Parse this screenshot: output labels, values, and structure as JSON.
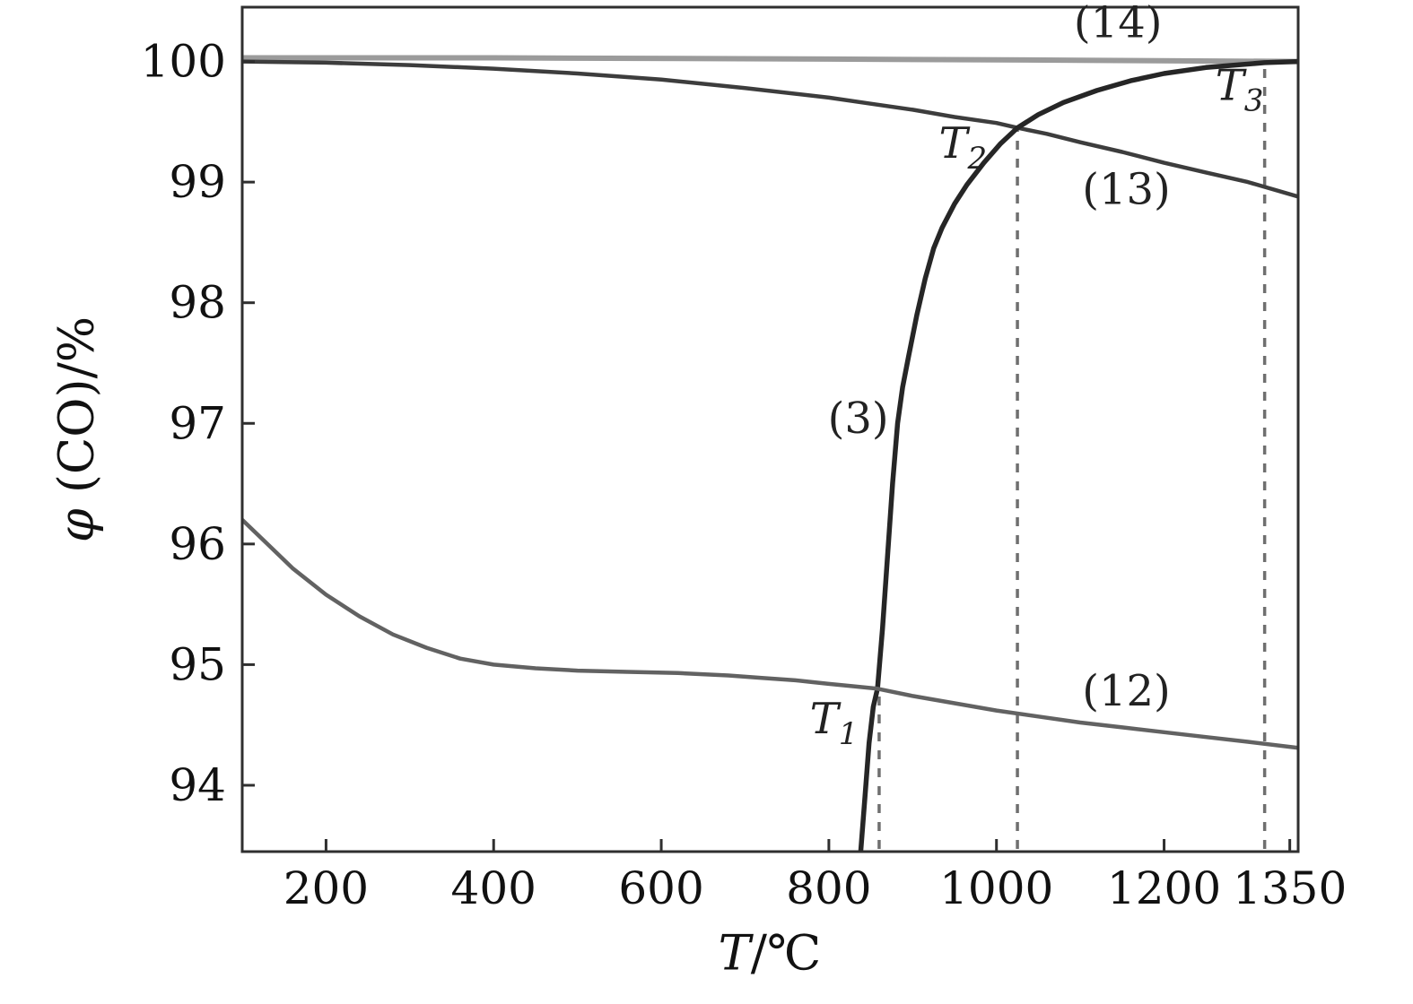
{
  "chart_data": {
    "type": "line",
    "title": "",
    "xlabel": {
      "symbol": "T",
      "rest": "/℃"
    },
    "ylabel": {
      "symbol": "φ",
      "rest": " (CO)/%"
    },
    "xlim": [
      100,
      1360
    ],
    "ylim": [
      93.45,
      100.45
    ],
    "xticks": [
      200,
      400,
      600,
      800,
      1000,
      1200,
      1350
    ],
    "yticks": [
      94,
      95,
      96,
      97,
      98,
      99,
      100
    ],
    "grid": false,
    "legend": "inline-curve-labels",
    "frame_color": "#2f2f2f",
    "dashed_line_color": "#6f6f6f",
    "series": [
      {
        "name": "(14)",
        "color": "#9b9b9b",
        "width": 6,
        "points": [
          [
            100,
            100.03
          ],
          [
            400,
            100.03
          ],
          [
            800,
            100.02
          ],
          [
            1100,
            100.01
          ],
          [
            1360,
            100.0
          ]
        ]
      },
      {
        "name": "(13)",
        "color": "#3d3d3d",
        "width": 4.5,
        "points": [
          [
            100,
            100.0
          ],
          [
            200,
            99.99
          ],
          [
            300,
            99.97
          ],
          [
            400,
            99.94
          ],
          [
            500,
            99.9
          ],
          [
            600,
            99.85
          ],
          [
            700,
            99.78
          ],
          [
            800,
            99.7
          ],
          [
            850,
            99.65
          ],
          [
            900,
            99.6
          ],
          [
            950,
            99.54
          ],
          [
            1000,
            99.49
          ],
          [
            1025,
            99.45
          ],
          [
            1060,
            99.4
          ],
          [
            1100,
            99.33
          ],
          [
            1150,
            99.25
          ],
          [
            1200,
            99.16
          ],
          [
            1250,
            99.08
          ],
          [
            1300,
            99.0
          ],
          [
            1360,
            98.88
          ]
        ]
      },
      {
        "name": "(3)",
        "color": "#262626",
        "width": 5.5,
        "points": [
          [
            838,
            93.45
          ],
          [
            843,
            93.9
          ],
          [
            848,
            94.35
          ],
          [
            853,
            94.65
          ],
          [
            858,
            94.8
          ],
          [
            864,
            95.3
          ],
          [
            870,
            95.9
          ],
          [
            876,
            96.5
          ],
          [
            882,
            97.0
          ],
          [
            888,
            97.3
          ],
          [
            895,
            97.55
          ],
          [
            905,
            97.9
          ],
          [
            915,
            98.2
          ],
          [
            925,
            98.45
          ],
          [
            935,
            98.62
          ],
          [
            950,
            98.82
          ],
          [
            965,
            98.98
          ],
          [
            985,
            99.16
          ],
          [
            1005,
            99.32
          ],
          [
            1025,
            99.45
          ],
          [
            1050,
            99.56
          ],
          [
            1080,
            99.66
          ],
          [
            1120,
            99.76
          ],
          [
            1160,
            99.84
          ],
          [
            1200,
            99.9
          ],
          [
            1250,
            99.95
          ],
          [
            1320,
            99.99
          ],
          [
            1360,
            100.0
          ]
        ]
      },
      {
        "name": "(12)",
        "color": "#626262",
        "width": 4.5,
        "points": [
          [
            100,
            96.2
          ],
          [
            130,
            96.0
          ],
          [
            160,
            95.8
          ],
          [
            200,
            95.58
          ],
          [
            240,
            95.4
          ],
          [
            280,
            95.25
          ],
          [
            320,
            95.14
          ],
          [
            360,
            95.05
          ],
          [
            400,
            95.0
          ],
          [
            450,
            94.97
          ],
          [
            500,
            94.95
          ],
          [
            560,
            94.94
          ],
          [
            620,
            94.93
          ],
          [
            680,
            94.91
          ],
          [
            720,
            94.89
          ],
          [
            760,
            94.87
          ],
          [
            800,
            94.84
          ],
          [
            830,
            94.82
          ],
          [
            858,
            94.8
          ],
          [
            900,
            94.74
          ],
          [
            950,
            94.68
          ],
          [
            1000,
            94.62
          ],
          [
            1050,
            94.57
          ],
          [
            1100,
            94.52
          ],
          [
            1150,
            94.48
          ],
          [
            1200,
            94.44
          ],
          [
            1250,
            94.4
          ],
          [
            1300,
            94.36
          ],
          [
            1360,
            94.31
          ]
        ]
      }
    ],
    "vlines": [
      {
        "name": "T1",
        "x": 860,
        "y_top": 94.78
      },
      {
        "name": "T2",
        "x": 1025,
        "y_top": 99.45
      },
      {
        "name": "T3",
        "x": 1320,
        "y_top": 99.97
      }
    ],
    "annotations": [
      {
        "text": "(14)",
        "x": 1145,
        "y": 100.2,
        "italic": false
      },
      {
        "base": "T",
        "sub": "3",
        "x": 1290,
        "y": 99.68,
        "italic": true
      },
      {
        "base": "T",
        "sub": "2",
        "x": 960,
        "y": 99.2,
        "italic": true
      },
      {
        "text": "(13)",
        "x": 1155,
        "y": 98.82,
        "italic": false
      },
      {
        "text": "(3)",
        "x": 835,
        "y": 96.92,
        "italic": false
      },
      {
        "text": "(12)",
        "x": 1155,
        "y": 94.66,
        "italic": false
      },
      {
        "base": "T",
        "sub": "1",
        "x": 806,
        "y": 94.43,
        "italic": true
      }
    ]
  }
}
